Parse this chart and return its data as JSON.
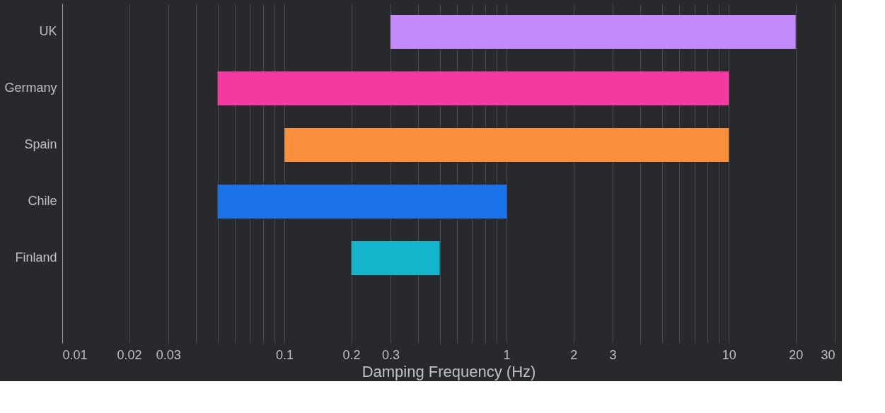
{
  "chart_data": {
    "type": "bar",
    "orientation": "horizontal",
    "xlabel": "Damping Frequency (Hz)",
    "categories": [
      "UK",
      "Germany",
      "Spain",
      "Chile",
      "Finland",
      null
    ],
    "base": [
      0.3,
      0.05,
      0.1,
      0.05,
      0.2,
      null
    ],
    "values": [
      19.7,
      9.95,
      9.9,
      0.95,
      0.3,
      null
    ],
    "colors": [
      "#c58af9",
      "#f439a0",
      "#fa903e",
      "#1a73e8",
      "#12b5cb",
      null
    ],
    "log": "x",
    "xlim": [
      0.01,
      30
    ],
    "xticks": [
      0.01,
      0.02,
      0.03,
      {
        "value": 0.04,
        "label": null
      },
      {
        "value": 0.05,
        "label": null
      },
      {
        "value": 0.06,
        "label": null
      },
      {
        "value": 0.07,
        "label": null
      },
      {
        "value": 0.08,
        "label": null
      },
      {
        "value": 0.09,
        "label": null
      },
      0.1,
      0.2,
      0.3,
      {
        "value": 0.4,
        "label": null
      },
      {
        "value": 0.5,
        "label": null
      },
      {
        "value": 0.6,
        "label": null
      },
      {
        "value": 0.7,
        "label": null
      },
      {
        "value": 0.8,
        "label": null
      },
      {
        "value": 0.9,
        "label": null
      },
      1,
      2,
      3,
      {
        "value": 4,
        "label": null
      },
      {
        "value": 5,
        "label": null
      },
      {
        "value": 6,
        "label": null
      },
      {
        "value": 7,
        "label": null
      },
      {
        "value": 8,
        "label": null
      },
      {
        "value": 9,
        "label": null
      },
      10,
      20,
      30
    ],
    "grid": "x"
  }
}
